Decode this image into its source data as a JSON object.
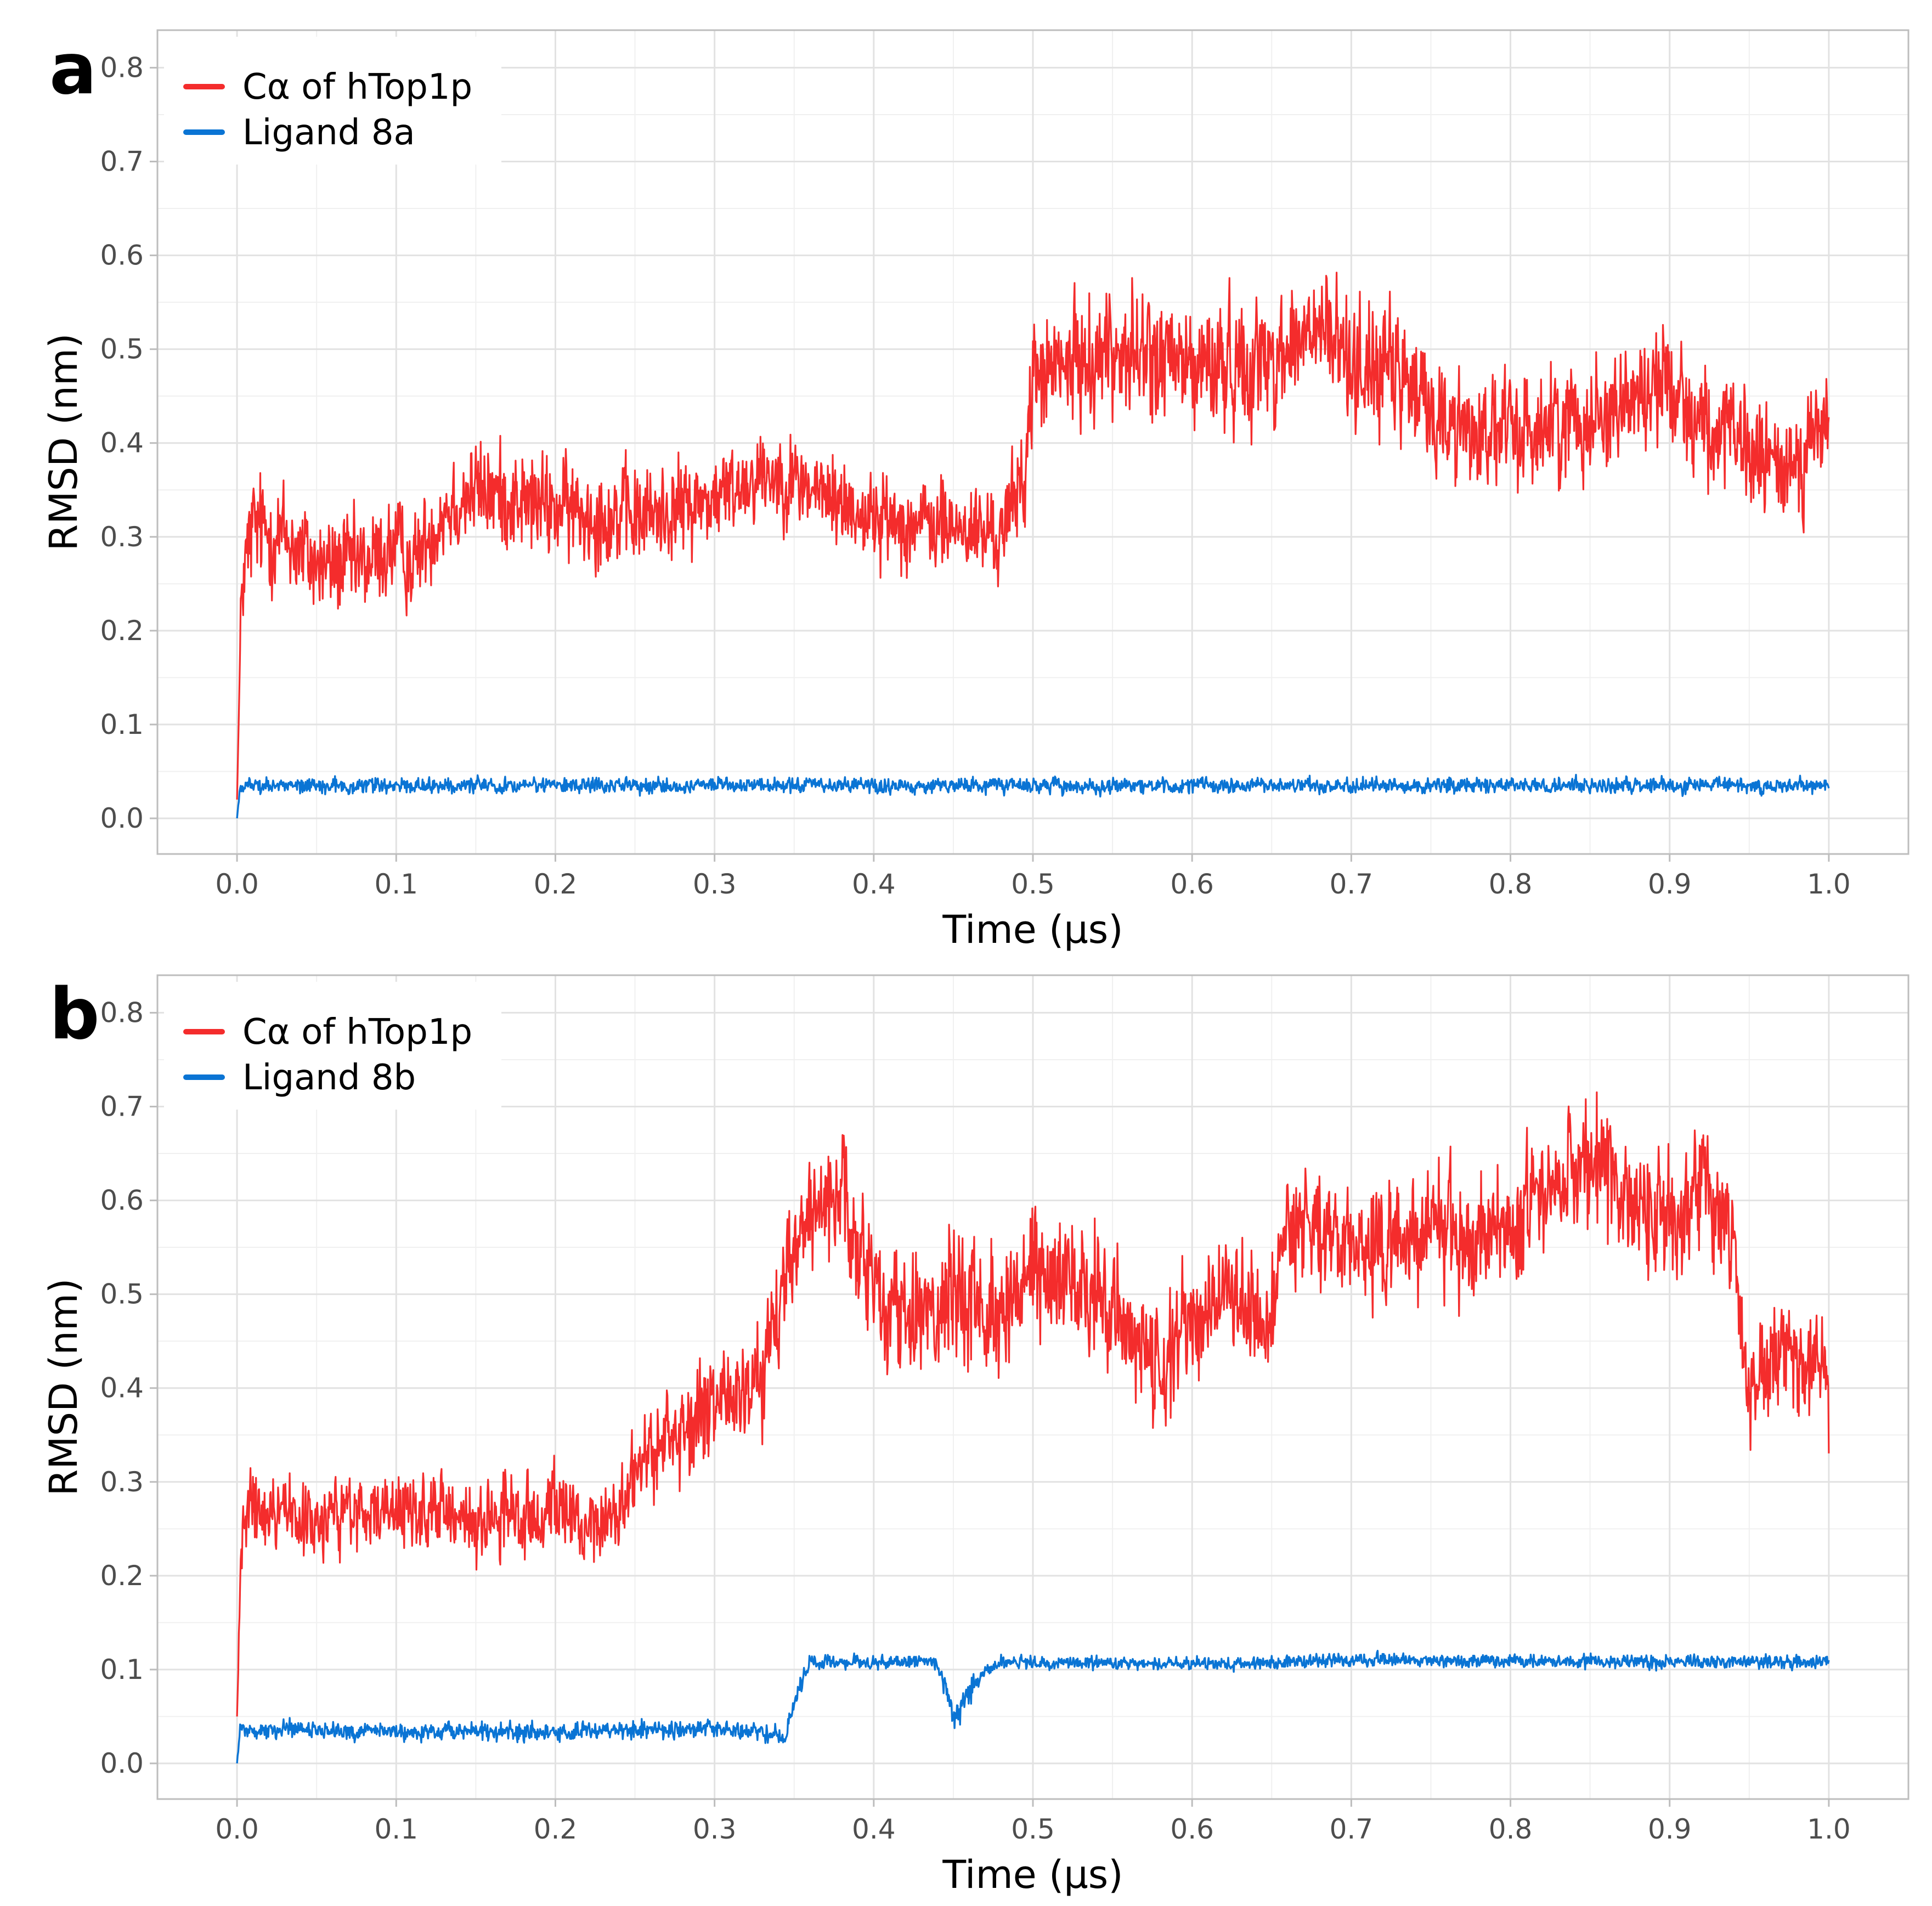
{
  "chart_data": [
    {
      "type": "line",
      "panel_label": "a",
      "title": "",
      "xlabel": "Time (μs)",
      "ylabel": "RMSD (nm)",
      "xlim": [
        -0.05,
        1.05
      ],
      "ylim": [
        -0.038,
        0.84
      ],
      "xticks": [
        0.0,
        0.1,
        0.2,
        0.3,
        0.4,
        0.5,
        0.6,
        0.7,
        0.8,
        0.9,
        1.0
      ],
      "xtick_labels": [
        "0.0",
        "0.1",
        "0.2",
        "0.3",
        "0.4",
        "0.5",
        "0.6",
        "0.7",
        "0.8",
        "0.9",
        "1.0"
      ],
      "yticks": [
        0.0,
        0.1,
        0.2,
        0.3,
        0.4,
        0.5,
        0.6,
        0.7,
        0.8
      ],
      "ytick_labels": [
        "0.0",
        "0.1",
        "0.2",
        "0.3",
        "0.4",
        "0.5",
        "0.6",
        "0.7",
        "0.8"
      ],
      "grid": true,
      "legend_position": "top-left",
      "series": [
        {
          "name": "Cα of hTop1p",
          "color": "#f42c2c",
          "x": [
            0.0,
            0.003,
            0.01,
            0.03,
            0.05,
            0.08,
            0.1,
            0.11,
            0.13,
            0.15,
            0.2,
            0.25,
            0.3,
            0.33,
            0.35,
            0.4,
            0.45,
            0.48,
            0.495,
            0.5,
            0.52,
            0.55,
            0.6,
            0.65,
            0.68,
            0.7,
            0.73,
            0.76,
            0.8,
            0.85,
            0.88,
            0.9,
            0.92,
            0.95,
            0.97,
            1.0
          ],
          "mean": [
            0.02,
            0.25,
            0.31,
            0.3,
            0.27,
            0.27,
            0.29,
            0.27,
            0.33,
            0.35,
            0.33,
            0.32,
            0.34,
            0.37,
            0.36,
            0.32,
            0.31,
            0.3,
            0.37,
            0.47,
            0.48,
            0.5,
            0.48,
            0.49,
            0.52,
            0.49,
            0.47,
            0.42,
            0.41,
            0.43,
            0.45,
            0.47,
            0.42,
            0.39,
            0.37,
            0.42
          ],
          "spread": [
            0.0,
            0.08,
            0.09,
            0.09,
            0.08,
            0.08,
            0.08,
            0.07,
            0.08,
            0.08,
            0.08,
            0.08,
            0.07,
            0.07,
            0.07,
            0.07,
            0.07,
            0.07,
            0.08,
            0.09,
            0.09,
            0.1,
            0.1,
            0.1,
            0.1,
            0.1,
            0.1,
            0.09,
            0.09,
            0.09,
            0.09,
            0.09,
            0.09,
            0.09,
            0.09,
            0.09
          ]
        },
        {
          "name": "Ligand 8a",
          "color": "#0a74d4",
          "x": [
            0.0,
            0.002,
            0.01,
            0.5,
            1.0
          ],
          "mean": [
            0.0,
            0.035,
            0.035,
            0.035,
            0.035
          ],
          "spread": [
            0.0,
            0.012,
            0.012,
            0.012,
            0.012
          ]
        }
      ]
    },
    {
      "type": "line",
      "panel_label": "b",
      "title": "",
      "xlabel": "Time (μs)",
      "ylabel": "RMSD (nm)",
      "xlim": [
        -0.05,
        1.05
      ],
      "ylim": [
        -0.038,
        0.84
      ],
      "xticks": [
        0.0,
        0.1,
        0.2,
        0.3,
        0.4,
        0.5,
        0.6,
        0.7,
        0.8,
        0.9,
        1.0
      ],
      "xtick_labels": [
        "0.0",
        "0.1",
        "0.2",
        "0.3",
        "0.4",
        "0.5",
        "0.6",
        "0.7",
        "0.8",
        "0.9",
        "1.0"
      ],
      "yticks": [
        0.0,
        0.1,
        0.2,
        0.3,
        0.4,
        0.5,
        0.6,
        0.7,
        0.8
      ],
      "ytick_labels": [
        "0.0",
        "0.1",
        "0.2",
        "0.3",
        "0.4",
        "0.5",
        "0.6",
        "0.7",
        "0.8"
      ],
      "grid": true,
      "legend_position": "top-left",
      "series": [
        {
          "name": "Cα of hTop1p",
          "color": "#f42c2c",
          "x": [
            0.0,
            0.003,
            0.01,
            0.05,
            0.1,
            0.15,
            0.2,
            0.23,
            0.25,
            0.28,
            0.3,
            0.33,
            0.35,
            0.36,
            0.38,
            0.4,
            0.42,
            0.45,
            0.48,
            0.5,
            0.52,
            0.55,
            0.58,
            0.6,
            0.62,
            0.65,
            0.66,
            0.7,
            0.75,
            0.8,
            0.85,
            0.88,
            0.9,
            0.92,
            0.94,
            0.95,
            0.97,
            1.0
          ],
          "mean": [
            0.05,
            0.25,
            0.27,
            0.26,
            0.27,
            0.26,
            0.27,
            0.25,
            0.31,
            0.36,
            0.38,
            0.41,
            0.55,
            0.58,
            0.6,
            0.5,
            0.47,
            0.51,
            0.48,
            0.53,
            0.51,
            0.5,
            0.4,
            0.47,
            0.5,
            0.47,
            0.58,
            0.55,
            0.56,
            0.57,
            0.65,
            0.6,
            0.58,
            0.62,
            0.55,
            0.4,
            0.45,
            0.4
          ],
          "spread": [
            0.0,
            0.06,
            0.06,
            0.06,
            0.06,
            0.06,
            0.06,
            0.06,
            0.07,
            0.08,
            0.08,
            0.08,
            0.09,
            0.09,
            0.09,
            0.1,
            0.1,
            0.1,
            0.1,
            0.1,
            0.1,
            0.1,
            0.1,
            0.1,
            0.1,
            0.1,
            0.1,
            0.1,
            0.1,
            0.1,
            0.1,
            0.1,
            0.1,
            0.1,
            0.1,
            0.09,
            0.09,
            0.09
          ]
        },
        {
          "name": "Ligand 8b",
          "color": "#0a74d4",
          "x": [
            0.0,
            0.002,
            0.01,
            0.2,
            0.3,
            0.345,
            0.35,
            0.36,
            0.44,
            0.45,
            0.47,
            0.48,
            0.6,
            0.66,
            0.68,
            1.0
          ],
          "mean": [
            0.0,
            0.035,
            0.035,
            0.033,
            0.038,
            0.03,
            0.07,
            0.108,
            0.108,
            0.05,
            0.1,
            0.108,
            0.106,
            0.108,
            0.11,
            0.108
          ],
          "spread": [
            0.0,
            0.014,
            0.014,
            0.014,
            0.014,
            0.014,
            0.02,
            0.01,
            0.01,
            0.03,
            0.01,
            0.01,
            0.01,
            0.01,
            0.01,
            0.01
          ]
        }
      ]
    }
  ]
}
